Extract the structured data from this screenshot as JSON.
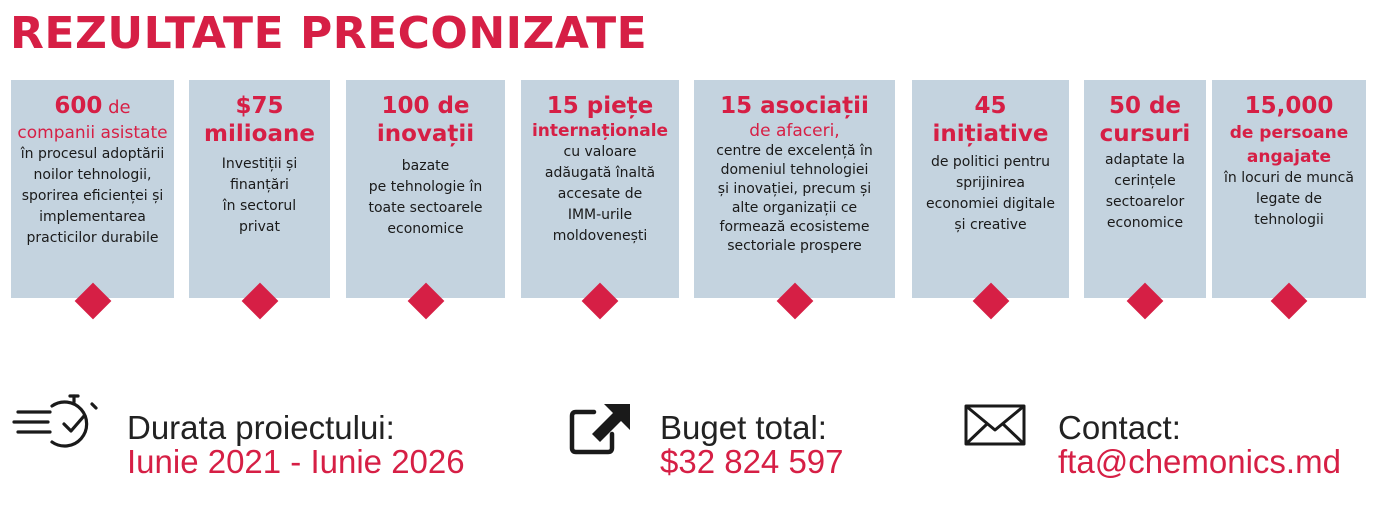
{
  "title": "REZULTATE PRECONIZATE",
  "cards": [
    {
      "head_num": "600",
      "head_small": " de",
      "sub": "companii asistate",
      "desc": [
        "în procesul adoptării",
        "noilor tehnologii,",
        "sporirea eficienței și",
        "implementarea",
        "practicilor durabile"
      ]
    },
    {
      "head_lines": [
        "$75",
        "milioane"
      ],
      "desc": [
        "Investiții și",
        "finanțări",
        "în sectorul",
        "privat"
      ]
    },
    {
      "head_lines": [
        "100 de",
        "inovații"
      ],
      "desc": [
        "bazate",
        "pe tehnologie în",
        "toate sectoarele",
        "economice"
      ]
    },
    {
      "head_lines": [
        "15 piețe"
      ],
      "sub_bold": "internaționale",
      "desc": [
        "cu valoare",
        "adăugată înaltă",
        "accesate de",
        "IMM-urile",
        "moldovenești"
      ]
    },
    {
      "head_lines": [
        "15 asociații"
      ],
      "sub": "de afaceri,",
      "desc": [
        "centre de excelență în",
        "domeniul tehnologiei",
        "și inovației, precum și",
        "alte organizații ce",
        "formează ecosisteme",
        "sectoriale  prospere"
      ]
    },
    {
      "head_lines": [
        "45",
        "inițiative"
      ],
      "desc": [
        "de politici pentru",
        "sprijinirea",
        "economiei digitale",
        "și creative"
      ]
    },
    {
      "head_lines": [
        "50 de",
        "cursuri"
      ],
      "desc": [
        "adaptate la",
        "cerințele",
        "sectoarelor",
        "economice"
      ]
    },
    {
      "head_lines": [
        "15,000"
      ],
      "sub_bold_lines": [
        "de persoane",
        "angajate"
      ],
      "desc": [
        "în locuri de muncă",
        "legate de",
        "tehnologii"
      ]
    }
  ],
  "footer": {
    "duration": {
      "icon": "stopwatch-icon",
      "label": "Durata proiectului:",
      "value": "Iunie 2021 - Iunie 2026"
    },
    "budget": {
      "icon": "external-link-icon",
      "label": "Buget total:",
      "value": "$32 824 597"
    },
    "contact": {
      "icon": "envelope-icon",
      "label": "Contact:",
      "value": "fta@chemonics.md"
    }
  },
  "colors": {
    "accent": "#d61f45",
    "card_bg": "#c4d3df",
    "text": "#1a1a1a"
  }
}
